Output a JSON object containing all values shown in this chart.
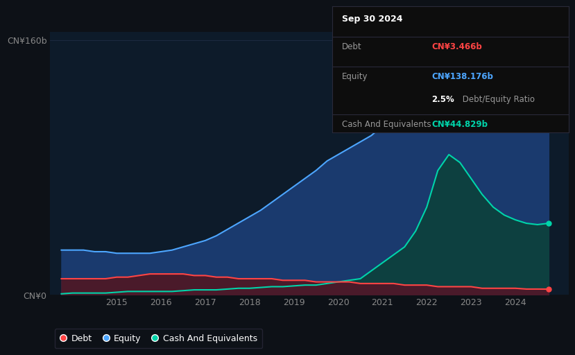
{
  "bg_color": "#0d1117",
  "plot_bg_color": "#0d1b2a",
  "years": [
    2013.75,
    2014.0,
    2014.25,
    2014.5,
    2014.75,
    2015.0,
    2015.25,
    2015.5,
    2015.75,
    2016.0,
    2016.25,
    2016.5,
    2016.75,
    2017.0,
    2017.25,
    2017.5,
    2017.75,
    2018.0,
    2018.25,
    2018.5,
    2018.75,
    2019.0,
    2019.25,
    2019.5,
    2019.75,
    2020.0,
    2020.25,
    2020.5,
    2020.75,
    2021.0,
    2021.25,
    2021.5,
    2021.75,
    2022.0,
    2022.25,
    2022.5,
    2022.75,
    2023.0,
    2023.25,
    2023.5,
    2023.75,
    2024.0,
    2024.25,
    2024.5,
    2024.75
  ],
  "equity": [
    28,
    28,
    28,
    27,
    27,
    26,
    26,
    26,
    26,
    27,
    28,
    30,
    32,
    34,
    37,
    41,
    45,
    49,
    53,
    58,
    63,
    68,
    73,
    78,
    84,
    88,
    92,
    96,
    100,
    106,
    112,
    118,
    122,
    128,
    142,
    155,
    158,
    152,
    145,
    140,
    143,
    141,
    138,
    135,
    138
  ],
  "debt": [
    10,
    10,
    10,
    10,
    10,
    11,
    11,
    12,
    13,
    13,
    13,
    13,
    12,
    12,
    11,
    11,
    10,
    10,
    10,
    10,
    9,
    9,
    9,
    8,
    8,
    8,
    8,
    7,
    7,
    7,
    7,
    6,
    6,
    6,
    5,
    5,
    5,
    5,
    4,
    4,
    4,
    4,
    3.5,
    3.5,
    3.466
  ],
  "cash": [
    0.5,
    1,
    1,
    1,
    1,
    1.5,
    2,
    2,
    2,
    2,
    2,
    2.5,
    3,
    3,
    3,
    3.5,
    4,
    4,
    4.5,
    5,
    5,
    5.5,
    6,
    6,
    7,
    8,
    9,
    10,
    15,
    20,
    25,
    30,
    40,
    55,
    78,
    88,
    83,
    73,
    63,
    55,
    50,
    47,
    44.829,
    44,
    44.829
  ],
  "xlim": [
    2013.5,
    2025.2
  ],
  "ylim": [
    0,
    165
  ],
  "xtick_labels": [
    "2015",
    "2016",
    "2017",
    "2018",
    "2019",
    "2020",
    "2021",
    "2022",
    "2023",
    "2024"
  ],
  "xtick_positions": [
    2015,
    2016,
    2017,
    2018,
    2019,
    2020,
    2021,
    2022,
    2023,
    2024
  ],
  "ytick_top_label": "CN¥160b",
  "ytick_top_pos": 160,
  "ytick_bot_label": "CN¥0",
  "ytick_bot_pos": 0,
  "equity_color": "#4da6ff",
  "debt_color": "#ff4444",
  "cash_color": "#00d4aa",
  "equity_fill": "#1a3a6e",
  "debt_fill": "#4a1a2a",
  "cash_fill": "#0d4040",
  "grid_color": "#1e2d45",
  "tooltip_bg": "#0d0d0d",
  "tooltip_border": "#2a2a3a",
  "tooltip_date": "Sep 30 2024",
  "tooltip_debt_label": "Debt",
  "tooltip_debt_value": "CN¥3.466b",
  "tooltip_equity_label": "Equity",
  "tooltip_equity_value": "CN¥138.176b",
  "tooltip_ratio_value": "2.5%",
  "tooltip_ratio_label": " Debt/Equity Ratio",
  "tooltip_cash_label": "Cash And Equivalents",
  "tooltip_cash_value": "CN¥44.829b",
  "legend_debt": "Debt",
  "legend_equity": "Equity",
  "legend_cash": "Cash And Equivalents",
  "legend_bg": "#0d1117",
  "legend_border": "#2a2a3a"
}
